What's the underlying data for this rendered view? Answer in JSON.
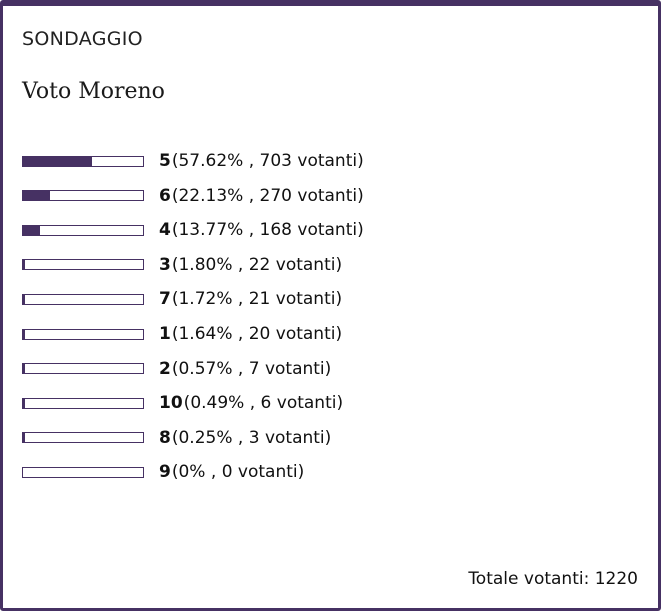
{
  "poll": {
    "header": "SONDAGGIO",
    "question": "Voto Moreno",
    "accent_color": "#463163",
    "options": [
      {
        "label": "5",
        "percent_text": "57.62%",
        "votes_text": "703 votanti",
        "percent": 57.62
      },
      {
        "label": "6",
        "percent_text": "22.13%",
        "votes_text": "270 votanti",
        "percent": 22.13
      },
      {
        "label": "4",
        "percent_text": "13.77%",
        "votes_text": "168 votanti",
        "percent": 13.77
      },
      {
        "label": "3",
        "percent_text": "1.80%",
        "votes_text": "22 votanti",
        "percent": 1.8
      },
      {
        "label": "7",
        "percent_text": "1.72%",
        "votes_text": "21 votanti",
        "percent": 1.72
      },
      {
        "label": "1",
        "percent_text": "1.64%",
        "votes_text": "20 votanti",
        "percent": 1.64
      },
      {
        "label": "2",
        "percent_text": "0.57%",
        "votes_text": "7 votanti",
        "percent": 0.57
      },
      {
        "label": "10",
        "percent_text": "0.49%",
        "votes_text": "6 votanti",
        "percent": 0.49
      },
      {
        "label": "8",
        "percent_text": "0.25%",
        "votes_text": "3 votanti",
        "percent": 0.25
      },
      {
        "label": "9",
        "percent_text": "0%",
        "votes_text": "0 votanti",
        "percent": 0
      }
    ],
    "total_label": "Totale votanti:",
    "total_value": "1220"
  }
}
